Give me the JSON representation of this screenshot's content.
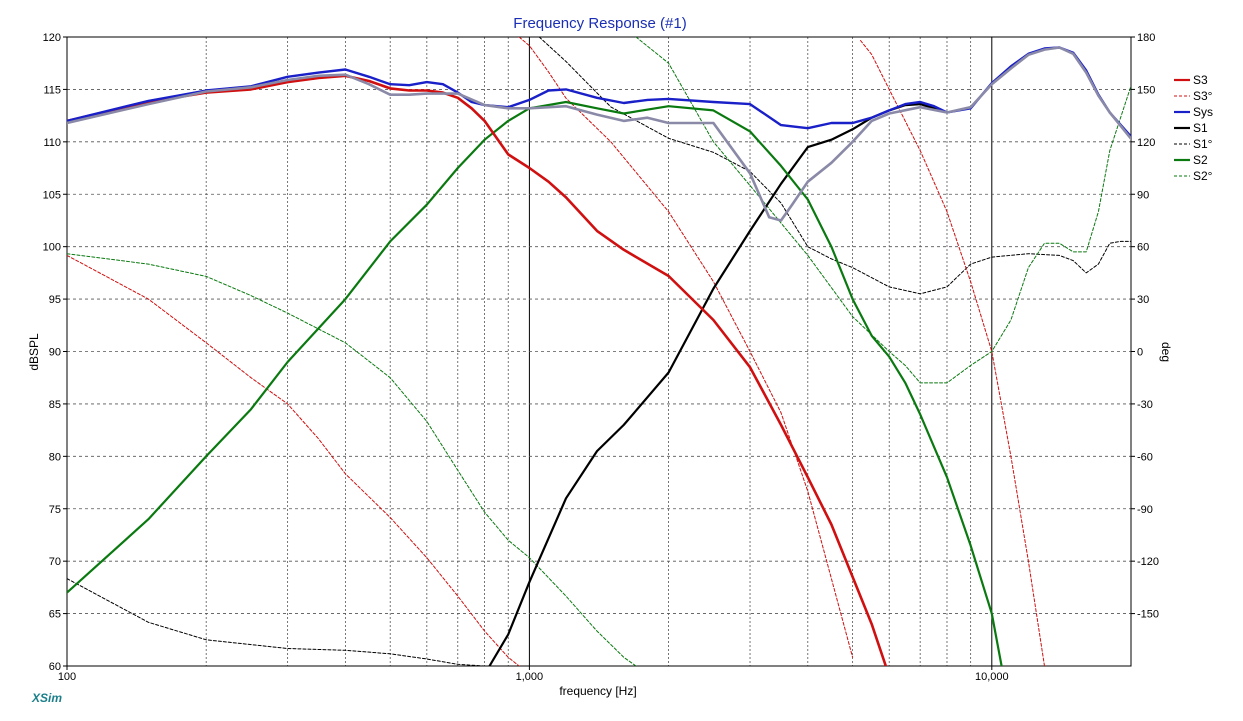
{
  "chart_data": {
    "type": "line",
    "title": "Frequency Response (#1)",
    "xlabel": "frequency [Hz]",
    "ylabel": "dBSPL",
    "y2label": "deg",
    "x_scale": "log",
    "xlim": [
      100,
      20000
    ],
    "ylim": [
      60,
      120
    ],
    "y2lim": [
      -180,
      180
    ],
    "x_tick_labels": [
      {
        "x": 100,
        "label": "100"
      },
      {
        "x": 1000,
        "label": "1,000"
      },
      {
        "x": 10000,
        "label": "10,000"
      }
    ],
    "y_ticks": [
      60,
      65,
      70,
      75,
      80,
      85,
      90,
      95,
      100,
      105,
      110,
      115,
      120
    ],
    "y2_ticks": [
      -150,
      -120,
      -90,
      -60,
      -30,
      0,
      30,
      60,
      90,
      120,
      150,
      180
    ],
    "grid": true,
    "legend_position": "right",
    "brand": "XSim",
    "series": [
      {
        "name": "S3",
        "axis": "left",
        "color": "#d01010",
        "style": "solid",
        "width": 2.6,
        "x": [
          100,
          150,
          200,
          250,
          300,
          350,
          400,
          450,
          500,
          550,
          600,
          650,
          700,
          750,
          800,
          900,
          1000,
          1100,
          1200,
          1400,
          1600,
          2000,
          2500,
          3000,
          3500,
          4000,
          4500,
          5000,
          5500,
          5900
        ],
        "y": [
          112,
          113.8,
          114.7,
          115,
          115.7,
          116.1,
          116.3,
          115.8,
          115.1,
          114.9,
          114.9,
          114.7,
          114.2,
          113.2,
          112,
          108.8,
          107.5,
          106.2,
          104.7,
          101.5,
          99.7,
          97.2,
          93,
          88.5,
          83,
          78,
          73.5,
          68.5,
          64,
          60
        ]
      },
      {
        "name": "S3°",
        "axis": "right",
        "color": "#d01010",
        "style": "dashed",
        "width": 1,
        "x": [
          100,
          150,
          200,
          250,
          300,
          350,
          400,
          500,
          600,
          700,
          800,
          900,
          950
        ],
        "y": [
          55,
          30,
          5,
          -15,
          -30,
          -50,
          -70,
          -95,
          -118,
          -140,
          -160,
          -175,
          -180
        ]
      },
      {
        "name": "S3°_b",
        "axis": "right",
        "color": "#d01010",
        "style": "dashed",
        "width": 1,
        "x": [
          950,
          1000,
          1100,
          1200,
          1500,
          2000,
          2500,
          3000,
          3500,
          4000,
          4500,
          5000
        ],
        "y": [
          180,
          175,
          160,
          145,
          120,
          80,
          40,
          0,
          -35,
          -80,
          -130,
          -175
        ]
      },
      {
        "name": "S3°_c",
        "axis": "right",
        "color": "#d01010",
        "style": "dashed",
        "width": 1,
        "x": [
          5200,
          5500,
          6000,
          7000,
          8000,
          9000,
          10000,
          11000,
          12000,
          13000
        ],
        "y": [
          178,
          170,
          150,
          115,
          80,
          40,
          0,
          -60,
          -120,
          -180
        ]
      },
      {
        "name": "Sys",
        "axis": "left",
        "color": "#1a20c8",
        "style": "solid",
        "width": 2.4,
        "x": [
          100,
          150,
          200,
          250,
          300,
          350,
          400,
          450,
          500,
          550,
          600,
          650,
          700,
          750,
          800,
          900,
          1000,
          1100,
          1200,
          1400,
          1600,
          1800,
          2000,
          2500,
          3000,
          3500,
          4000,
          4500,
          5000,
          5500,
          6000,
          6500,
          7000,
          7500,
          8000,
          9000,
          10000,
          11000,
          12000,
          13000,
          14000,
          15000,
          16000,
          17000,
          18000,
          20000
        ],
        "y": [
          112,
          113.9,
          114.9,
          115.3,
          116.2,
          116.6,
          116.9,
          116.2,
          115.5,
          115.4,
          115.7,
          115.5,
          114.7,
          113.8,
          113.5,
          113.3,
          114,
          114.9,
          115,
          114.2,
          113.7,
          114,
          114.1,
          113.8,
          113.6,
          111.6,
          111.3,
          111.8,
          111.8,
          112.3,
          113,
          113.6,
          113.8,
          113.4,
          112.8,
          113.2,
          115.6,
          117.2,
          118.4,
          118.9,
          119,
          118.5,
          116.8,
          114.5,
          112.8,
          110.5
        ]
      },
      {
        "name": "S1",
        "axis": "left",
        "color": "#000000",
        "style": "solid",
        "width": 2.2,
        "x": [
          820,
          900,
          1000,
          1200,
          1400,
          1600,
          2000,
          2500,
          3000,
          3500,
          4000,
          4500,
          5000,
          5500,
          6000,
          6500,
          7000,
          7500,
          8000
        ],
        "y": [
          60,
          63,
          68,
          76,
          80.5,
          83,
          88,
          96,
          101.5,
          106,
          109.5,
          110.2,
          111.2,
          112.3,
          113,
          113.5,
          113.6,
          113.2,
          112.8
        ]
      },
      {
        "name": "S1°",
        "axis": "right",
        "color": "#000000",
        "style": "dashed",
        "width": 1,
        "x": [
          100,
          150,
          200,
          300,
          400,
          500,
          600,
          700,
          800,
          900,
          1000,
          1050
        ],
        "y": [
          -130,
          -155,
          -165,
          -170,
          -171,
          -173,
          -176,
          -179,
          -180,
          -180,
          -180,
          -180
        ]
      },
      {
        "name": "S1°_b",
        "axis": "right",
        "color": "#000000",
        "style": "dashed",
        "width": 1,
        "x": [
          1050,
          1200,
          1500,
          2000,
          2500,
          3000,
          3500,
          4000,
          4500,
          5000,
          6000,
          7000,
          8000,
          9000,
          10000,
          12000,
          14000,
          15000,
          16000,
          17000,
          18000,
          19000,
          20000
        ],
        "y": [
          180,
          166,
          140,
          122,
          114,
          103,
          85,
          60,
          53,
          48,
          37,
          33,
          37,
          50,
          54,
          56,
          55,
          52,
          45,
          50,
          62,
          63,
          63
        ]
      },
      {
        "name": "S2",
        "axis": "left",
        "color": "#0a7a10",
        "style": "solid",
        "width": 2.2,
        "x": [
          100,
          150,
          200,
          250,
          300,
          400,
          500,
          600,
          700,
          800,
          900,
          1000,
          1200,
          1400,
          1600,
          2000,
          2500,
          3000,
          3500,
          4000,
          4500,
          5000,
          5500,
          6000,
          6500,
          7000,
          8000,
          9000,
          10000,
          10500
        ],
        "y": [
          67,
          74,
          80,
          84.5,
          89,
          95,
          100.5,
          104,
          107.5,
          110.2,
          112,
          113.2,
          113.8,
          113.2,
          112.7,
          113.4,
          113,
          111,
          107.7,
          104.5,
          100,
          95,
          91.5,
          89.5,
          87,
          84,
          78,
          71.5,
          65,
          60
        ]
      },
      {
        "name": "S2°",
        "axis": "right",
        "color": "#0a7a10",
        "style": "dashed",
        "width": 1,
        "x": [
          100,
          150,
          200,
          250,
          300,
          400,
          500,
          600,
          700,
          800,
          900,
          1000,
          1200,
          1400,
          1600,
          1700
        ],
        "y": [
          56,
          50,
          43,
          32,
          22,
          5,
          -15,
          -40,
          -68,
          -92,
          -108,
          -118,
          -140,
          -160,
          -175,
          -180
        ]
      },
      {
        "name": "S2°_b",
        "axis": "right",
        "color": "#0a7a10",
        "style": "dashed",
        "width": 1,
        "x": [
          1700,
          2000,
          2500,
          3000,
          4000,
          5000,
          6000,
          6500,
          7000,
          8000,
          9000,
          10000,
          11000,
          12000,
          13000,
          14000,
          15000,
          16000,
          17000,
          18000,
          20000
        ],
        "y": [
          180,
          165,
          120,
          95,
          55,
          20,
          0,
          -8,
          -18,
          -18,
          -8,
          0,
          18,
          48,
          62,
          62,
          57,
          57,
          80,
          115,
          152
        ]
      },
      {
        "name": "grey",
        "axis": "left",
        "color": "#8a8aa8",
        "style": "solid",
        "width": 2.6,
        "x": [
          100,
          150,
          200,
          250,
          300,
          350,
          400,
          450,
          500,
          550,
          600,
          700,
          800,
          900,
          1000,
          1200,
          1400,
          1600,
          1800,
          2000,
          2500,
          3000,
          3300,
          3500,
          3700,
          4000,
          4500,
          5000,
          5500,
          6000,
          7000,
          8000,
          9000,
          10000,
          11000,
          12000,
          13000,
          14000,
          15000,
          16000,
          17000,
          18000,
          20000
        ],
        "y": [
          111.8,
          113.6,
          114.8,
          115.2,
          115.9,
          116.3,
          116.4,
          115.5,
          114.5,
          114.5,
          114.6,
          114.6,
          113.5,
          113.2,
          113.2,
          113.4,
          112.6,
          112,
          112.3,
          111.8,
          111.8,
          107,
          102.8,
          102.5,
          104,
          106.2,
          108,
          110,
          112,
          112.7,
          113.3,
          112.8,
          113.3,
          115.5,
          117,
          118.3,
          118.8,
          119,
          118.4,
          116.6,
          114.4,
          112.8,
          110.3
        ]
      }
    ],
    "legend": [
      {
        "label": "S3",
        "color": "#d01010",
        "style": "solid"
      },
      {
        "label": "S3°",
        "color": "#d01010",
        "style": "dashed"
      },
      {
        "label": "Sys",
        "color": "#1a20c8",
        "style": "solid"
      },
      {
        "label": "S1",
        "color": "#000000",
        "style": "solid"
      },
      {
        "label": "S1°",
        "color": "#000000",
        "style": "dashed"
      },
      {
        "label": "S2",
        "color": "#0a7a10",
        "style": "solid"
      },
      {
        "label": "S2°",
        "color": "#0a7a10",
        "style": "dashed"
      }
    ]
  }
}
